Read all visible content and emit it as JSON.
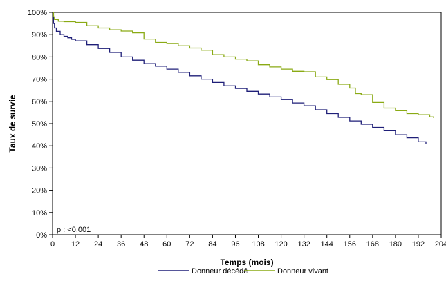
{
  "chart_data": {
    "type": "line",
    "title": "",
    "xlabel": "Temps (mois)",
    "ylabel": "Taux de survie",
    "xlim": [
      0,
      204
    ],
    "ylim": [
      0,
      100
    ],
    "xticks": [
      0,
      12,
      24,
      36,
      48,
      60,
      72,
      84,
      96,
      108,
      120,
      132,
      144,
      156,
      168,
      180,
      192,
      204
    ],
    "yticks": [
      "0%",
      "10%",
      "20%",
      "30%",
      "40%",
      "50%",
      "60%",
      "70%",
      "80%",
      "90%",
      "100%"
    ],
    "grid": false,
    "legend_position": "bottom",
    "annotation": "p : <0,001",
    "series": [
      {
        "name": "Donneur décédé",
        "color": "#1f1f78",
        "points": [
          [
            0,
            100
          ],
          [
            0.5,
            95
          ],
          [
            1,
            93
          ],
          [
            2,
            91.5
          ],
          [
            4,
            90
          ],
          [
            6,
            89.3
          ],
          [
            8,
            88.6
          ],
          [
            10,
            87.9
          ],
          [
            12,
            87.2
          ],
          [
            18,
            85.5
          ],
          [
            24,
            83.8
          ],
          [
            30,
            82
          ],
          [
            36,
            80
          ],
          [
            42,
            78.5
          ],
          [
            48,
            77
          ],
          [
            54,
            75.8
          ],
          [
            60,
            74.5
          ],
          [
            66,
            73
          ],
          [
            72,
            71.5
          ],
          [
            78,
            70
          ],
          [
            84,
            68.5
          ],
          [
            90,
            67
          ],
          [
            96,
            65.8
          ],
          [
            102,
            64.5
          ],
          [
            108,
            63.3
          ],
          [
            114,
            62
          ],
          [
            120,
            60.8
          ],
          [
            126,
            59.3
          ],
          [
            132,
            58
          ],
          [
            138,
            56.2
          ],
          [
            144,
            54.5
          ],
          [
            150,
            52.8
          ],
          [
            156,
            51.2
          ],
          [
            162,
            49.7
          ],
          [
            168,
            48.3
          ],
          [
            174,
            46.8
          ],
          [
            180,
            45
          ],
          [
            186,
            43.6
          ],
          [
            192,
            41.8
          ],
          [
            196,
            40.8
          ]
        ]
      },
      {
        "name": "Donneur vivant",
        "color": "#8aaa14",
        "points": [
          [
            0,
            100
          ],
          [
            0.5,
            98
          ],
          [
            1,
            96.8
          ],
          [
            3,
            96
          ],
          [
            6,
            95.8
          ],
          [
            12,
            95.5
          ],
          [
            18,
            94
          ],
          [
            24,
            93
          ],
          [
            30,
            92.2
          ],
          [
            36,
            91.6
          ],
          [
            42,
            90.8
          ],
          [
            48,
            88
          ],
          [
            54,
            86.5
          ],
          [
            60,
            86
          ],
          [
            66,
            85
          ],
          [
            72,
            84
          ],
          [
            78,
            83
          ],
          [
            84,
            81
          ],
          [
            90,
            80
          ],
          [
            96,
            79
          ],
          [
            102,
            78.2
          ],
          [
            108,
            76.5
          ],
          [
            114,
            75.5
          ],
          [
            120,
            74.5
          ],
          [
            126,
            73.5
          ],
          [
            132,
            73.3
          ],
          [
            138,
            71
          ],
          [
            144,
            69.8
          ],
          [
            150,
            67.7
          ],
          [
            156,
            66
          ],
          [
            159,
            63.5
          ],
          [
            162,
            63
          ],
          [
            168,
            59.5
          ],
          [
            174,
            57
          ],
          [
            180,
            55.8
          ],
          [
            186,
            54.5
          ],
          [
            192,
            54
          ],
          [
            198,
            53
          ],
          [
            200,
            52.5
          ]
        ]
      }
    ]
  }
}
